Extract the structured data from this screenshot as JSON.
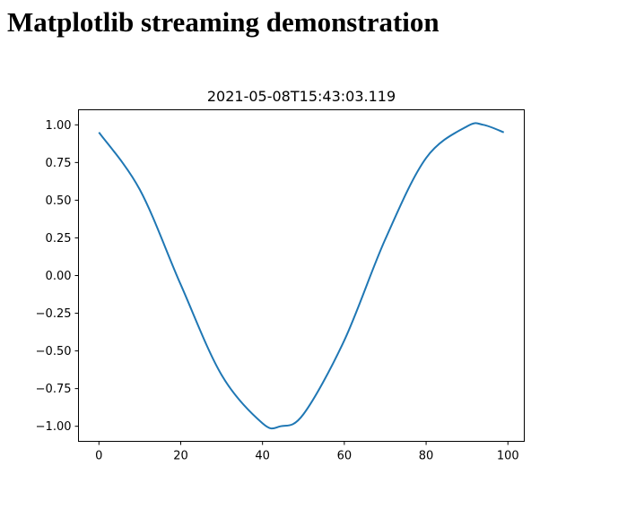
{
  "page": {
    "heading": "Matplotlib streaming demonstration"
  },
  "chart_data": {
    "type": "line",
    "title": "2021-05-08T15:43:03.119",
    "xlabel": "",
    "ylabel": "",
    "xlim": [
      -5,
      104
    ],
    "ylim": [
      -1.1,
      1.1
    ],
    "grid": false,
    "x_ticks": [
      0,
      20,
      40,
      60,
      80,
      100
    ],
    "x_tick_labels": [
      "0",
      "20",
      "40",
      "60",
      "80",
      "100"
    ],
    "y_ticks": [
      1.0,
      0.75,
      0.5,
      0.25,
      0.0,
      -0.25,
      -0.5,
      -0.75,
      -1.0
    ],
    "y_tick_labels": [
      "1.00",
      "0.75",
      "0.50",
      "0.25",
      "0.00",
      "−0.25",
      "−0.50",
      "−0.75",
      "−1.00"
    ],
    "series": [
      {
        "color": "#1f77b4",
        "x": [
          0,
          10,
          20,
          30,
          40,
          44.4,
          50,
          60,
          70,
          80,
          90,
          94,
          99
        ],
        "y": [
          0.95,
          0.57,
          -0.06,
          -0.66,
          -0.98,
          -1.0,
          -0.92,
          -0.43,
          0.24,
          0.78,
          0.99,
          1.0,
          0.95
        ]
      }
    ]
  }
}
